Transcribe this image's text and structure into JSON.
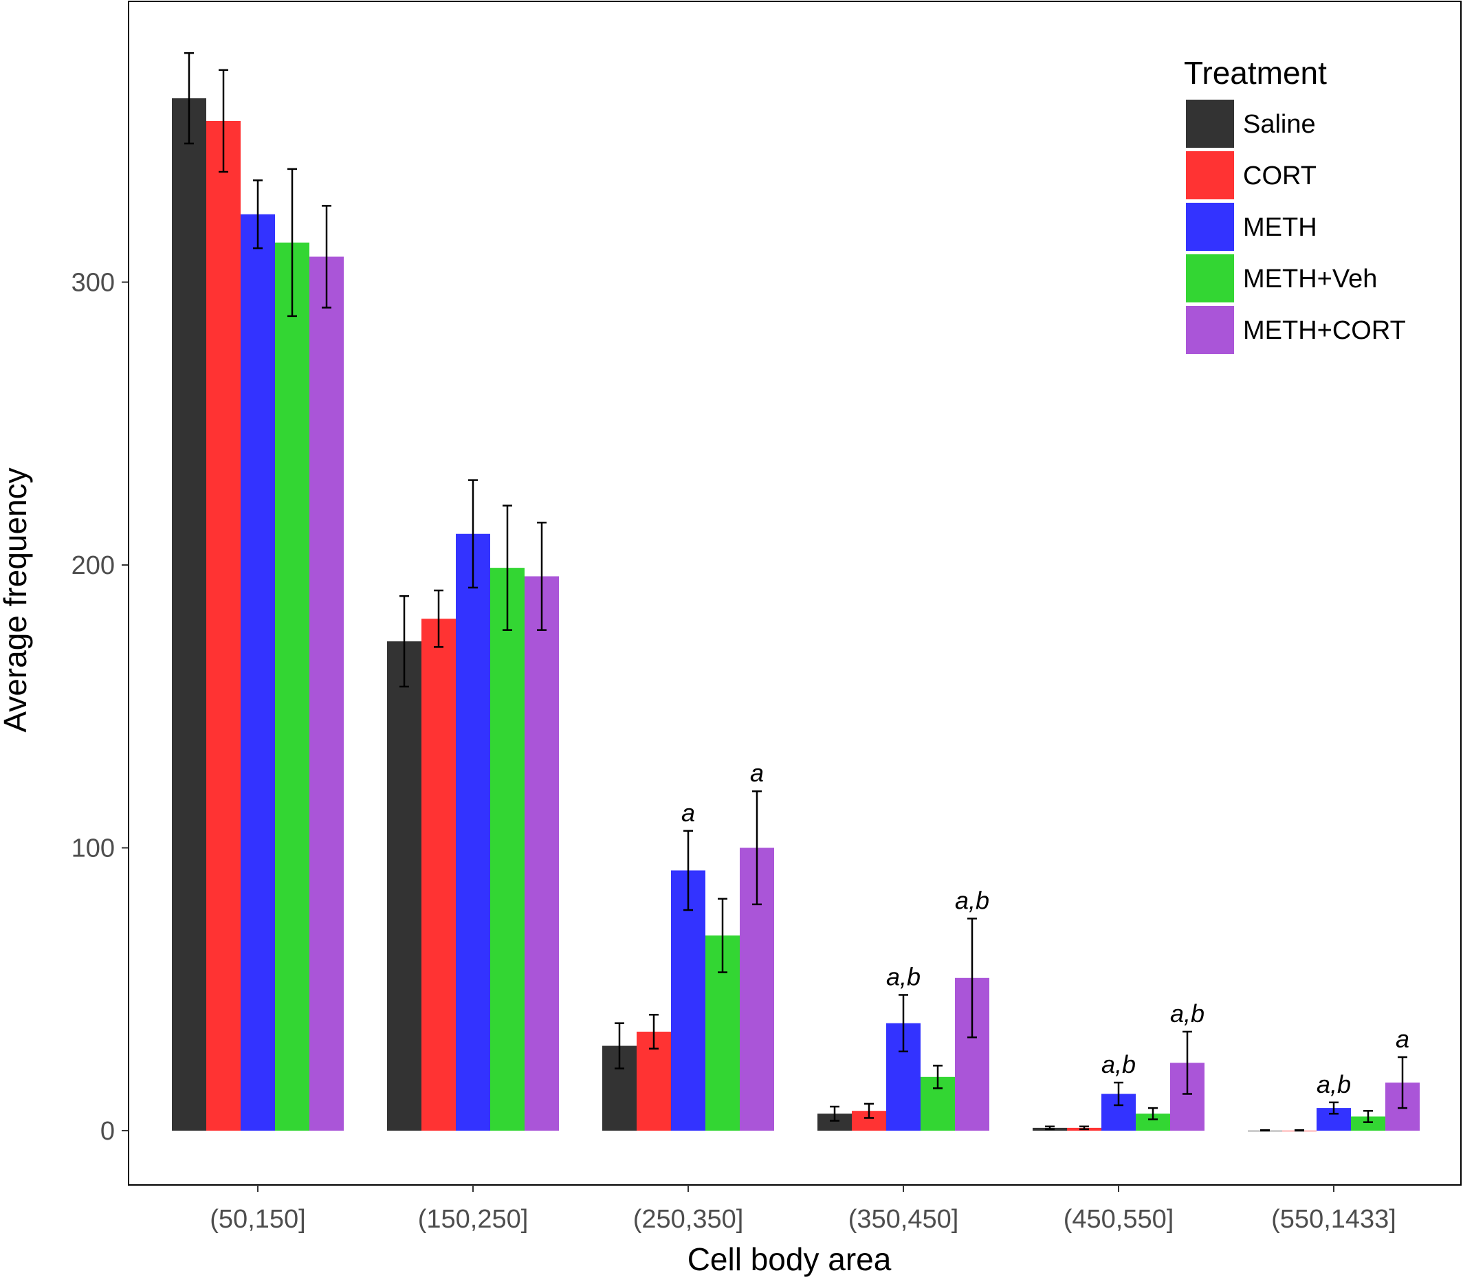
{
  "chart_data": {
    "type": "bar",
    "xlabel": "Cell body area",
    "ylabel": "Average frequency",
    "ylim": [
      -18,
      398
    ],
    "yticks": [
      0,
      100,
      200,
      300
    ],
    "grid": false,
    "legend": {
      "title": "Treatment",
      "position": "top-right"
    },
    "categories": [
      "(50,150]",
      "(150,250]",
      "(250,350]",
      "(350,450]",
      "(450,550]",
      "(550,1433]"
    ],
    "series": [
      {
        "name": "Saline",
        "color": "#333333",
        "values": [
          365,
          173,
          30,
          6,
          1,
          0
        ],
        "errors": [
          16,
          16,
          8,
          2.5,
          0.5,
          0.2
        ],
        "annotations": [
          "",
          "",
          "",
          "",
          "",
          ""
        ]
      },
      {
        "name": "CORT",
        "color": "#ff3333",
        "values": [
          357,
          181,
          35,
          7,
          1,
          0
        ],
        "errors": [
          18,
          10,
          6,
          2.5,
          0.5,
          0.2
        ],
        "annotations": [
          "",
          "",
          "",
          "",
          "",
          ""
        ]
      },
      {
        "name": "METH",
        "color": "#3333ff",
        "values": [
          324,
          211,
          92,
          38,
          13,
          8
        ],
        "errors": [
          12,
          19,
          14,
          10,
          4,
          2
        ],
        "annotations": [
          "",
          "",
          "a",
          "a,b",
          "a,b",
          "a,b"
        ]
      },
      {
        "name": "METH+Veh",
        "color": "#33d633",
        "values": [
          314,
          199,
          69,
          19,
          6,
          5
        ],
        "errors": [
          26,
          22,
          13,
          4,
          2,
          2
        ],
        "annotations": [
          "",
          "",
          "",
          "",
          "",
          ""
        ]
      },
      {
        "name": "METH+CORT",
        "color": "#aa55d8",
        "values": [
          309,
          196,
          100,
          54,
          24,
          17
        ],
        "errors": [
          18,
          19,
          20,
          21,
          11,
          9
        ],
        "annotations": [
          "",
          "",
          "a",
          "a,b",
          "a,b",
          "a"
        ]
      }
    ]
  }
}
